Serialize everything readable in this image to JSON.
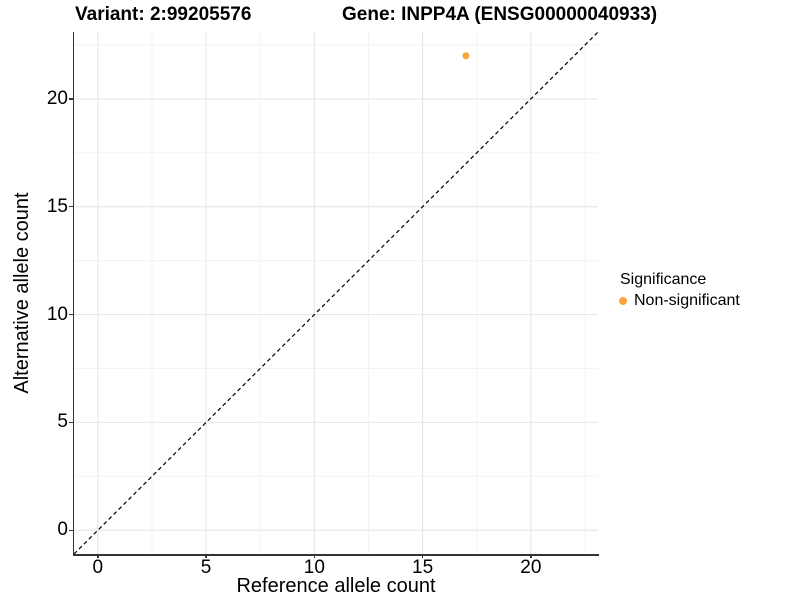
{
  "header": {
    "variant_title": "Variant: 2:99205576",
    "gene_title": "Gene: INPP4A (ENSG00000040933)"
  },
  "chart_data": {
    "type": "scatter",
    "title_left": "Variant: 2:99205576",
    "title_right": "Gene: INPP4A (ENSG00000040933)",
    "xlabel": "Reference allele count",
    "ylabel": "Alternative allele count",
    "xlim": [
      -1.1,
      23.1
    ],
    "ylim": [
      -1.1,
      23.1
    ],
    "xticks": [
      0,
      5,
      10,
      15,
      20
    ],
    "yticks": [
      0,
      5,
      10,
      15,
      20
    ],
    "xticks_minor": [
      2.5,
      7.5,
      12.5,
      17.5,
      22.5
    ],
    "yticks_minor": [
      2.5,
      7.5,
      12.5,
      17.5,
      22.5
    ],
    "grid": true,
    "identity_line": {
      "slope": 1,
      "intercept": 0,
      "style": "dashed",
      "color": "#000000"
    },
    "series": [
      {
        "name": "Non-significant",
        "color": "#FAA43A",
        "points": [
          {
            "x": 17,
            "y": 22
          }
        ]
      }
    ],
    "legend": {
      "position": "right",
      "title": "Significance",
      "items": [
        {
          "label": "Non-significant",
          "color": "#FAA43A"
        }
      ]
    }
  },
  "colors": {
    "point_non_significant": "#FAA43A",
    "grid_major": "#E8E8E8",
    "grid_minor": "#F3F3F3",
    "axis_line": "#333333",
    "text": "#000000"
  }
}
